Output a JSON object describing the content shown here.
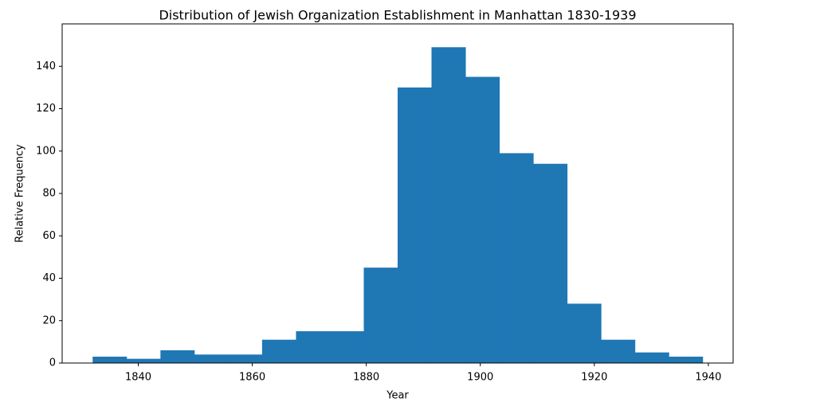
{
  "chart_data": {
    "type": "histogram",
    "title": "Distribution of Jewish Organization Establishment in Manhattan 1830-1939",
    "xlabel": "Year",
    "ylabel": "Relative Frequency",
    "bins": [
      1832,
      1837.94,
      1843.89,
      1849.83,
      1855.78,
      1861.72,
      1867.67,
      1873.61,
      1879.56,
      1885.5,
      1891.44,
      1897.39,
      1903.33,
      1909.28,
      1915.22,
      1921.17,
      1927.11,
      1933.06,
      1939
    ],
    "values": [
      3,
      2,
      6,
      4,
      4,
      11,
      15,
      15,
      45,
      130,
      149,
      135,
      99,
      94,
      28,
      11,
      5,
      3
    ],
    "color": "#1f77b4",
    "xlim": [
      1826.65,
      1944.35
    ],
    "xticks": [
      1840,
      1860,
      1880,
      1900,
      1920,
      1940
    ],
    "ylim": [
      0,
      160
    ],
    "yticks": [
      0,
      20,
      40,
      60,
      80,
      100,
      120,
      140
    ]
  }
}
